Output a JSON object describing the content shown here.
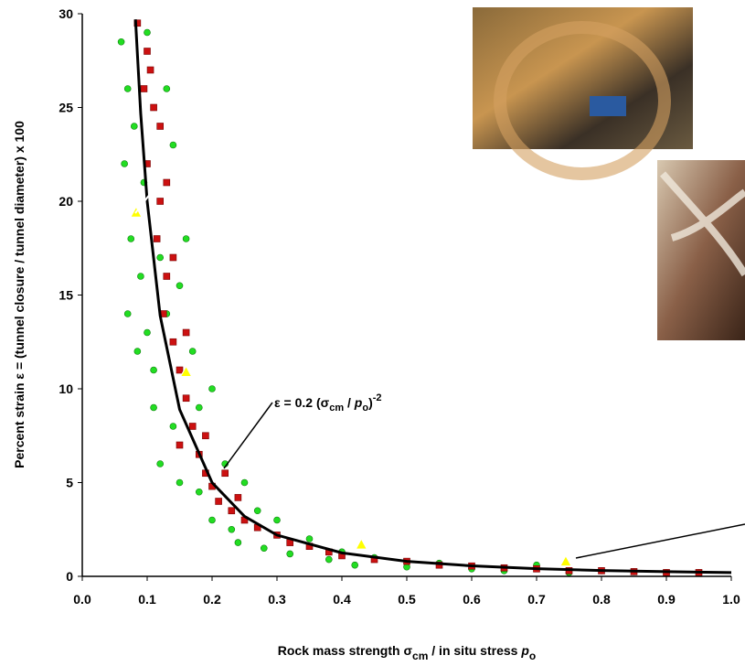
{
  "chart_data": {
    "type": "scatter",
    "y_label": "Percent strain ε = (tunnel closure / tunnel diameter) x 100",
    "x_label": [
      "Rock mass strength σ",
      "cm",
      " / in situ stress ",
      "p",
      "o"
    ],
    "annotation": [
      "ε = 0.2 (σ",
      "cm",
      " / ",
      "p",
      "o",
      ")",
      "-2"
    ],
    "xlim": [
      0,
      1
    ],
    "ylim": [
      0,
      30
    ],
    "xticks": [
      {
        "value": 0,
        "label": "0.0"
      },
      0.1,
      0.2,
      0.3,
      0.4,
      0.5,
      0.6,
      0.7,
      0.8,
      0.9,
      {
        "value": 1,
        "label": "1.0"
      }
    ],
    "yticks": [
      0,
      5,
      10,
      15,
      20,
      25,
      30
    ],
    "series": [
      {
        "color": "#22dd22",
        "marker": "circle",
        "x": [
          0.06,
          0.07,
          0.065,
          0.08,
          0.075,
          0.07,
          0.09,
          0.085,
          0.1,
          0.11,
          0.095,
          0.12,
          0.13,
          0.15,
          0.16,
          0.14,
          0.17,
          0.18,
          0.2,
          0.12,
          0.15,
          0.18,
          0.2,
          0.22,
          0.25,
          0.23,
          0.27,
          0.3,
          0.28,
          0.32,
          0.35,
          0.38,
          0.4,
          0.42,
          0.45,
          0.5,
          0.55,
          0.6,
          0.65,
          0.7,
          0.75,
          0.8,
          0.85,
          0.9,
          0.95,
          0.1,
          0.13,
          0.14,
          0.11,
          0.24
        ],
        "values": [
          28.5,
          26,
          22,
          24,
          18,
          14,
          16,
          12,
          13,
          9,
          21,
          17,
          14,
          15.5,
          18,
          8,
          12,
          9,
          10,
          6,
          5,
          4.5,
          3,
          6,
          5,
          2.5,
          3.5,
          3,
          1.5,
          1.2,
          2,
          0.9,
          1.3,
          0.6,
          1,
          0.5,
          0.7,
          0.4,
          0.3,
          0.6,
          0.2,
          0.3,
          0.25,
          0.2,
          0.2,
          29,
          26,
          23,
          11,
          1.8
        ]
      },
      {
        "color": "#cc1111",
        "marker": "square",
        "x": [
          0.085,
          0.1,
          0.095,
          0.11,
          0.1,
          0.12,
          0.115,
          0.13,
          0.125,
          0.14,
          0.15,
          0.16,
          0.17,
          0.15,
          0.18,
          0.19,
          0.2,
          0.21,
          0.22,
          0.23,
          0.25,
          0.27,
          0.3,
          0.32,
          0.35,
          0.38,
          0.4,
          0.45,
          0.5,
          0.55,
          0.6,
          0.65,
          0.7,
          0.75,
          0.8,
          0.85,
          0.9,
          0.95,
          0.13,
          0.12,
          0.105,
          0.16,
          0.14,
          0.19,
          0.24
        ],
        "values": [
          29.5,
          28,
          26,
          25,
          22,
          20,
          18,
          16,
          14,
          12.5,
          11,
          9.5,
          8,
          7,
          6.5,
          5.5,
          4.8,
          4,
          5.5,
          3.5,
          3,
          2.6,
          2.2,
          1.8,
          1.6,
          1.3,
          1.1,
          0.9,
          0.8,
          0.6,
          0.55,
          0.45,
          0.4,
          0.3,
          0.3,
          0.25,
          0.2,
          0.2,
          21,
          24,
          27,
          13,
          17,
          7.5,
          4.2
        ]
      },
      {
        "color": "#ffff00",
        "marker": "triangle",
        "x": [
          0.083,
          0.16,
          0.43,
          0.745
        ],
        "values": [
          19.4,
          10.9,
          1.7,
          0.8
        ]
      }
    ],
    "fit": {
      "type": "line",
      "color": "#000000",
      "x": [
        0.082,
        0.09,
        0.1,
        0.12,
        0.15,
        0.2,
        0.25,
        0.3,
        0.4,
        0.5,
        0.6,
        0.7,
        0.8,
        0.9,
        1.0
      ],
      "values": [
        29.7,
        24.7,
        20,
        13.9,
        8.9,
        5,
        3.2,
        2.2,
        1.25,
        0.8,
        0.56,
        0.41,
        0.31,
        0.25,
        0.2
      ]
    }
  }
}
